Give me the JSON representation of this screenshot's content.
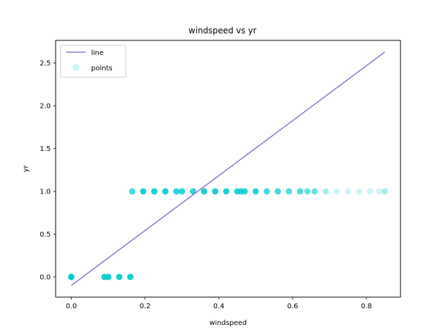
{
  "chart_data": {
    "type": "scatter",
    "title": "windspeed vs yr",
    "xlabel": "windspeed",
    "ylabel": "yr",
    "xlim": [
      -0.0425,
      0.8925
    ],
    "ylim": [
      -0.2365,
      2.7665
    ],
    "xticks": [
      0.0,
      0.2,
      0.4,
      0.6,
      0.8
    ],
    "xtick_labels": [
      "0.0",
      "0.2",
      "0.4",
      "0.6",
      "0.8"
    ],
    "yticks": [
      0.0,
      0.5,
      1.0,
      1.5,
      2.0,
      2.5
    ],
    "ytick_labels": [
      "0.0",
      "0.5",
      "1.0",
      "1.5",
      "2.0",
      "2.5"
    ],
    "grid": false,
    "legend_position": "top-left",
    "line": {
      "name": "line",
      "color": "#9370db",
      "x": [
        0.0,
        0.85
      ],
      "y": [
        -0.1,
        2.63
      ]
    },
    "points": {
      "name": "points",
      "color": "#00ced1",
      "alpha": 0.2,
      "x": [
        0.0,
        0.0,
        0.0,
        0.09,
        0.09,
        0.1,
        0.1,
        0.13,
        0.13,
        0.16,
        0.16,
        0.165,
        0.195,
        0.225,
        0.255,
        0.285,
        0.3,
        0.33,
        0.36,
        0.39,
        0.42,
        0.45,
        0.46,
        0.47,
        0.5,
        0.53,
        0.56,
        0.59,
        0.62,
        0.64,
        0.66,
        0.69,
        0.72,
        0.75,
        0.78,
        0.81,
        0.835,
        0.85
      ],
      "y": [
        0,
        0,
        0,
        0,
        0,
        0,
        0,
        0,
        0,
        0,
        0,
        1,
        1,
        1,
        1,
        1,
        1,
        1,
        1,
        1,
        1,
        1,
        1,
        1,
        1,
        1,
        1,
        1,
        1,
        1,
        1,
        1,
        1,
        1,
        1,
        1,
        1,
        1
      ],
      "stack": [
        8,
        8,
        8,
        6,
        6,
        6,
        6,
        6,
        6,
        6,
        6,
        6,
        10,
        10,
        10,
        8,
        8,
        8,
        10,
        10,
        10,
        8,
        8,
        8,
        8,
        6,
        6,
        5,
        5,
        4,
        4,
        2,
        1,
        1,
        1,
        1,
        1,
        2
      ]
    }
  }
}
